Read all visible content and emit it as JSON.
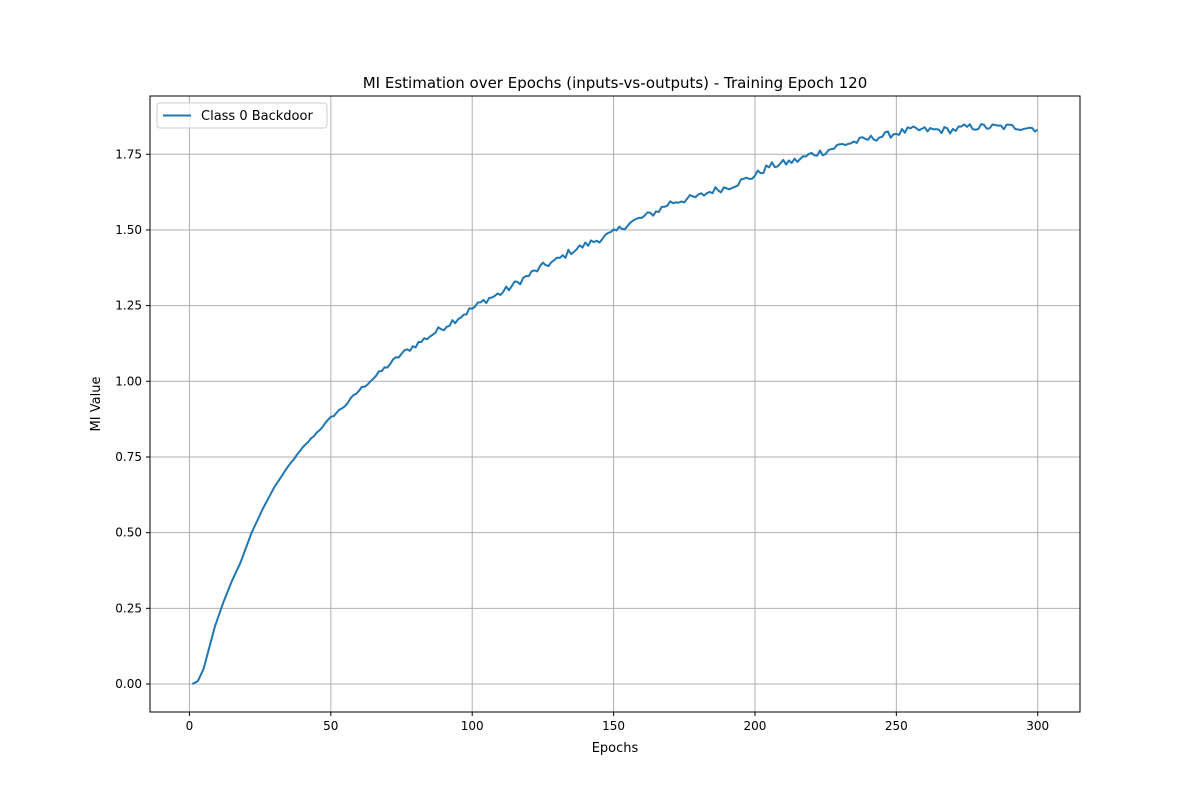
{
  "chart_data": {
    "type": "line",
    "title": "MI Estimation over Epochs (inputs-vs-outputs) - Training Epoch 120",
    "xlabel": "Epochs",
    "ylabel": "MI Value",
    "xlim": [
      -13.95,
      314.95
    ],
    "ylim": [
      -0.0925,
      1.9425
    ],
    "xticks": [
      0,
      50,
      100,
      150,
      200,
      250,
      300
    ],
    "xtick_labels": [
      "0",
      "50",
      "100",
      "150",
      "200",
      "250",
      "300"
    ],
    "yticks": [
      0.0,
      0.25,
      0.5,
      0.75,
      1.0,
      1.25,
      1.5,
      1.75
    ],
    "ytick_labels": [
      "0.00",
      "0.25",
      "0.50",
      "0.75",
      "1.00",
      "1.25",
      "1.50",
      "1.75"
    ],
    "grid": true,
    "legend_position": "upper left",
    "series": [
      {
        "name": "Class 0 Backdoor",
        "color": "#1f77b4",
        "x_start": 1,
        "x_end": 300,
        "anchors": [
          [
            1,
            0.0
          ],
          [
            3,
            0.01
          ],
          [
            5,
            0.05
          ],
          [
            7,
            0.12
          ],
          [
            9,
            0.19
          ],
          [
            12,
            0.27
          ],
          [
            15,
            0.34
          ],
          [
            18,
            0.4
          ],
          [
            22,
            0.5
          ],
          [
            26,
            0.58
          ],
          [
            30,
            0.65
          ],
          [
            35,
            0.72
          ],
          [
            40,
            0.78
          ],
          [
            45,
            0.83
          ],
          [
            50,
            0.88
          ],
          [
            55,
            0.92
          ],
          [
            60,
            0.97
          ],
          [
            65,
            1.01
          ],
          [
            70,
            1.05
          ],
          [
            75,
            1.09
          ],
          [
            80,
            1.12
          ],
          [
            85,
            1.15
          ],
          [
            90,
            1.18
          ],
          [
            95,
            1.21
          ],
          [
            100,
            1.24
          ],
          [
            105,
            1.27
          ],
          [
            110,
            1.29
          ],
          [
            115,
            1.32
          ],
          [
            120,
            1.35
          ],
          [
            125,
            1.38
          ],
          [
            130,
            1.4
          ],
          [
            135,
            1.43
          ],
          [
            140,
            1.45
          ],
          [
            145,
            1.47
          ],
          [
            150,
            1.49
          ],
          [
            155,
            1.52
          ],
          [
            160,
            1.54
          ],
          [
            165,
            1.56
          ],
          [
            170,
            1.59
          ],
          [
            175,
            1.6
          ],
          [
            180,
            1.61
          ],
          [
            185,
            1.63
          ],
          [
            190,
            1.64
          ],
          [
            195,
            1.66
          ],
          [
            200,
            1.68
          ],
          [
            205,
            1.71
          ],
          [
            210,
            1.72
          ],
          [
            215,
            1.73
          ],
          [
            220,
            1.75
          ],
          [
            225,
            1.76
          ],
          [
            230,
            1.78
          ],
          [
            235,
            1.79
          ],
          [
            240,
            1.8
          ],
          [
            245,
            1.81
          ],
          [
            250,
            1.82
          ],
          [
            255,
            1.83
          ],
          [
            260,
            1.83
          ],
          [
            265,
            1.83
          ],
          [
            270,
            1.83
          ],
          [
            275,
            1.84
          ],
          [
            280,
            1.84
          ],
          [
            285,
            1.84
          ],
          [
            290,
            1.84
          ],
          [
            295,
            1.84
          ],
          [
            300,
            1.835
          ]
        ],
        "noise_amplitude": 0.012
      }
    ]
  }
}
